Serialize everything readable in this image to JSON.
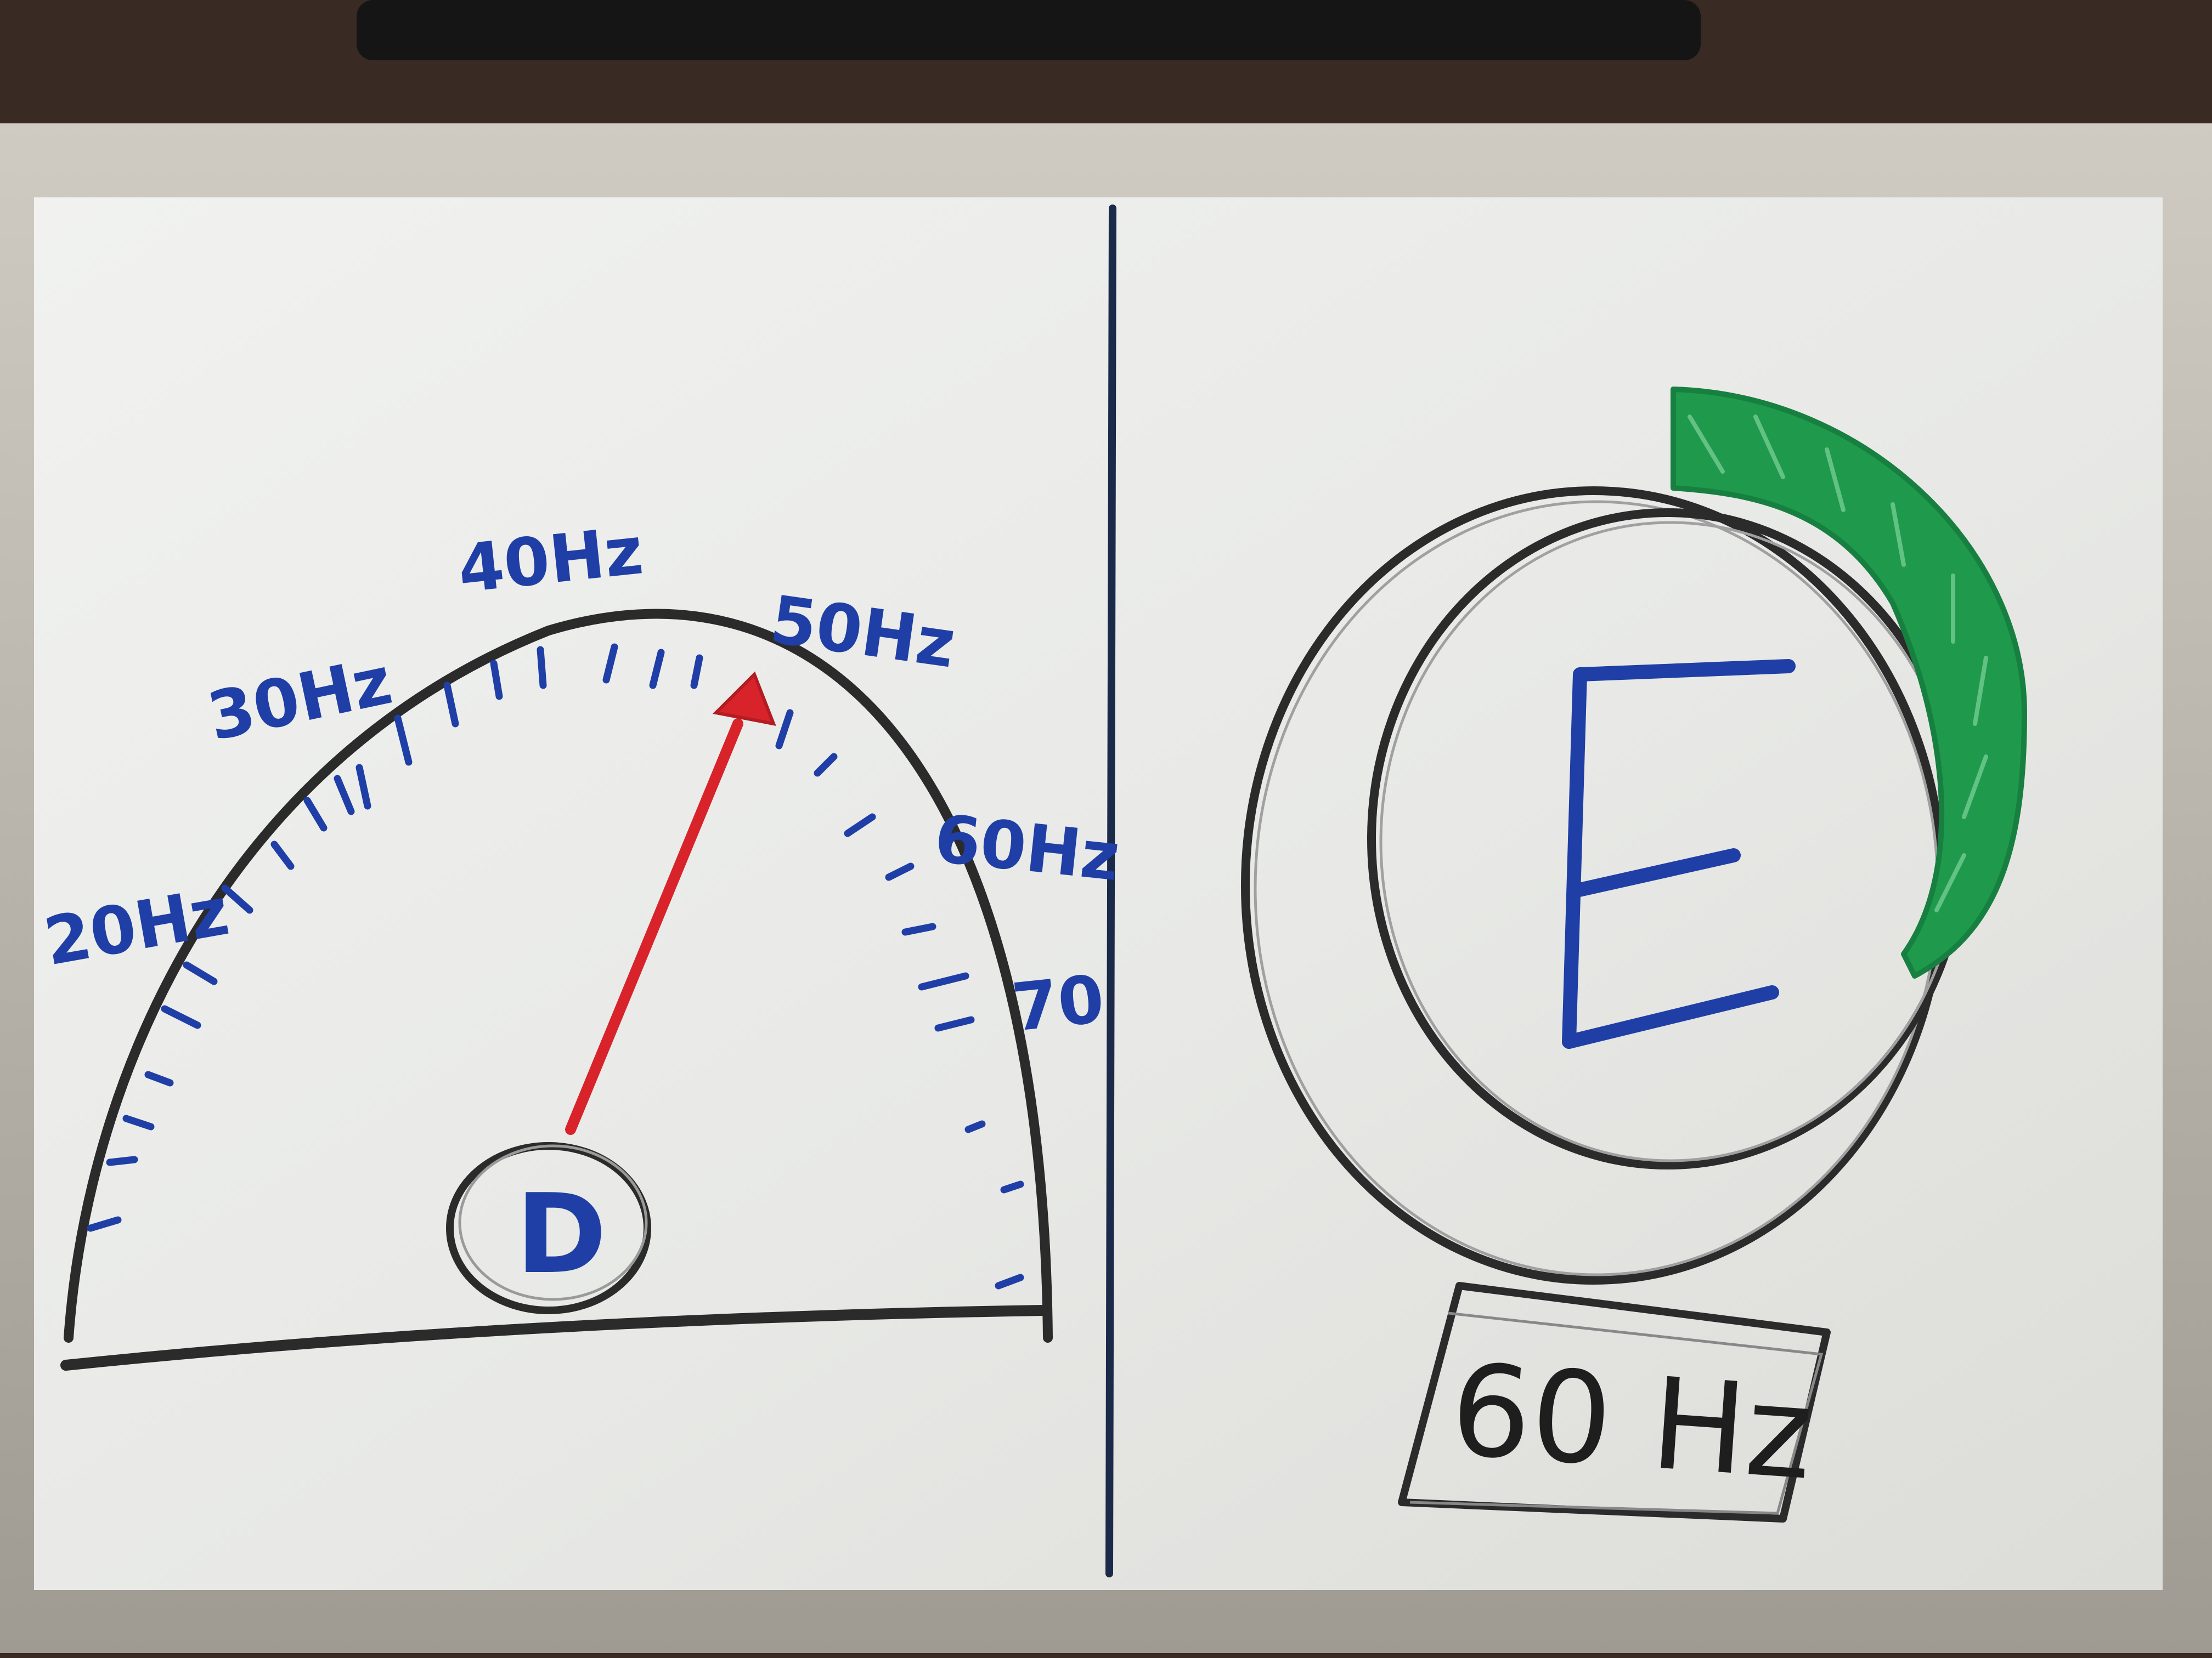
{
  "left_panel": {
    "scale_labels": [
      "20Hz",
      "30Hz",
      "40Hz",
      "50Hz",
      "60Hz",
      "70"
    ],
    "center_label": "D",
    "needle_color": "#d8232a",
    "label_color": "#1f3fa6"
  },
  "right_panel": {
    "dial_letter": "E",
    "readout": "60 Hz",
    "arc_color": "#1f9a4c",
    "letter_color": "#1f3fa6"
  },
  "colors": {
    "board": "#ecedea",
    "frame": "#b9b6ae",
    "marker_black": "#2b2b2b",
    "divider": "#1c2a4a"
  }
}
